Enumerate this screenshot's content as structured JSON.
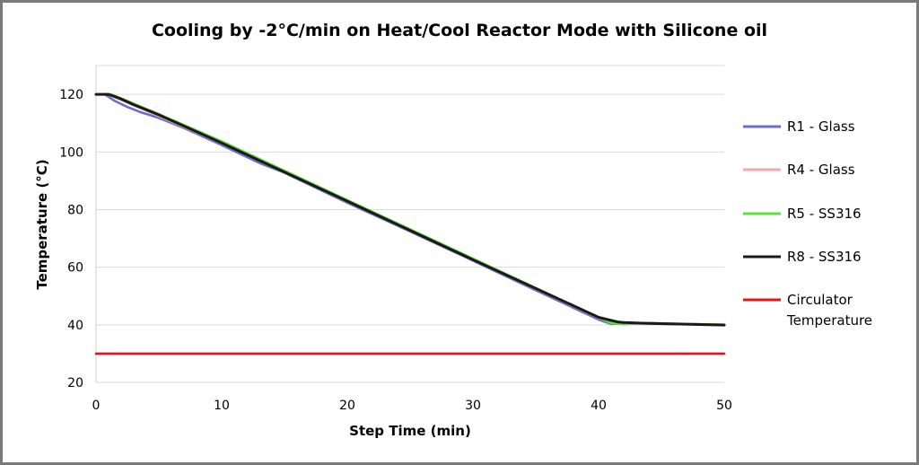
{
  "chart_data": {
    "type": "line",
    "title": "Cooling by -2°C/min on Heat/Cool Reactor Mode with Silicone oil",
    "xlabel": "Step Time (min)",
    "ylabel": "Temperature (°C)",
    "xlim": [
      0,
      50
    ],
    "ylim": [
      20,
      130
    ],
    "xticks": [
      0,
      10,
      20,
      30,
      40,
      50
    ],
    "yticks": [
      20,
      40,
      60,
      80,
      100,
      120
    ],
    "grid": "horizontal",
    "legend_position": "right",
    "series": [
      {
        "name": "R1 - Glass",
        "legend_lines": [
          "R1 - Glass"
        ],
        "color": "#6b6bd6",
        "x": [
          0,
          0.7,
          1.5,
          2.5,
          3.5,
          5,
          7,
          10,
          13,
          15,
          20,
          25,
          30,
          35,
          38,
          40,
          41,
          42,
          44,
          46,
          48,
          50
        ],
        "y": [
          120,
          120,
          117.7,
          115.6,
          113.9,
          111.8,
          108.3,
          102.4,
          96.2,
          92.8,
          82.4,
          72.4,
          62.3,
          52.0,
          45.9,
          41.8,
          40.3,
          40.4,
          40.6,
          40.4,
          40.2,
          40.0
        ]
      },
      {
        "name": "R4 - Glass",
        "legend_lines": [
          "R4 - Glass"
        ],
        "color": "#f4a8a8",
        "x": [
          0,
          1,
          1.5,
          3,
          5,
          10,
          20,
          30,
          40,
          41.5,
          44,
          48,
          50
        ],
        "y": [
          120,
          120,
          119,
          116.2,
          112.5,
          103.0,
          82.8,
          62.6,
          42.4,
          40.5,
          40.3,
          40.2,
          40.0
        ]
      },
      {
        "name": "R5 - SS316",
        "legend_lines": [
          "R5 - SS316"
        ],
        "color": "#5ee03a",
        "x": [
          0,
          1.2,
          2,
          3,
          5,
          10,
          20,
          30,
          38,
          40,
          41,
          42,
          43,
          46,
          50
        ],
        "y": [
          120,
          120,
          118.6,
          116.8,
          113.1,
          103.7,
          83.3,
          63.0,
          46.7,
          42.6,
          40.6,
          40.2,
          40.4,
          40.3,
          40.1
        ]
      },
      {
        "name": "R8 - SS316",
        "legend_lines": [
          "R8 - SS316"
        ],
        "color": "#1a1a1a",
        "x": [
          0,
          1,
          2,
          3,
          5,
          10,
          20,
          30,
          38,
          40,
          41.5,
          42,
          44,
          46,
          48,
          50
        ],
        "y": [
          120,
          120,
          118.4,
          116.4,
          112.9,
          103.1,
          82.9,
          62.6,
          46.6,
          42.6,
          41.0,
          40.8,
          40.5,
          40.3,
          40.1,
          39.9
        ]
      },
      {
        "name": "Circulator Temperature",
        "legend_lines": [
          "Circulator",
          "Temperature"
        ],
        "color": "#e8141c",
        "x": [
          0,
          5,
          10,
          15,
          20,
          25,
          30,
          35,
          40,
          45,
          50
        ],
        "y": [
          30,
          30,
          30,
          30,
          30,
          30,
          30,
          30,
          30,
          30,
          30
        ]
      }
    ]
  }
}
